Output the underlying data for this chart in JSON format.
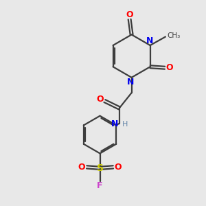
{
  "bg_color": "#e8e8e8",
  "bond_color": "#3d3d3d",
  "n_color": "#0000ee",
  "o_color": "#ff0000",
  "f_color": "#cc44cc",
  "s_color": "#cccc00",
  "h_color": "#6688aa",
  "line_width": 1.6,
  "figsize": [
    3.0,
    3.0
  ],
  "dpi": 100,
  "xlim": [
    0,
    10
  ],
  "ylim": [
    0,
    10
  ]
}
